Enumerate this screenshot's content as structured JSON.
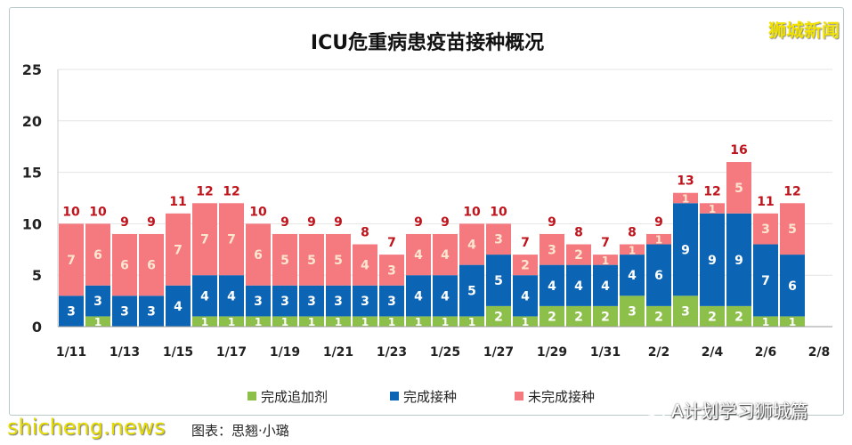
{
  "chart_data": {
    "type": "bar",
    "stacked": true,
    "title": "ICU危重病患疫苗接种概况",
    "xlabel": "",
    "ylabel": "",
    "ylim": [
      0,
      25
    ],
    "yticks": [
      "0",
      "5",
      "10",
      "15",
      "20",
      "25"
    ],
    "grid": true,
    "legend_position": "bottom",
    "categories": [
      "1/11",
      "1/12",
      "1/13",
      "1/14",
      "1/15",
      "1/16",
      "1/17",
      "1/18",
      "1/19",
      "1/20",
      "1/21",
      "1/22",
      "1/23",
      "1/24",
      "1/25",
      "1/26",
      "1/27",
      "1/28",
      "1/29",
      "1/30",
      "1/31",
      "2/1",
      "2/2",
      "2/3",
      "2/4",
      "2/5",
      "2/6",
      "2/7"
    ],
    "xtick_labels": [
      "1/11",
      "1/13",
      "1/15",
      "1/17",
      "1/19",
      "1/21",
      "1/23",
      "1/25",
      "1/27",
      "1/29",
      "1/31",
      "2/2",
      "2/4",
      "2/6",
      "2/8"
    ],
    "series": [
      {
        "name": "完成追加剂",
        "color": "#8cc04a",
        "values": [
          0,
          1,
          0,
          0,
          0,
          1,
          1,
          1,
          1,
          1,
          1,
          1,
          1,
          1,
          1,
          1,
          2,
          1,
          2,
          2,
          2,
          3,
          2,
          3,
          2,
          2,
          1,
          1
        ]
      },
      {
        "name": "完成接种",
        "color": "#0c64b4",
        "values": [
          3,
          3,
          3,
          3,
          4,
          4,
          4,
          3,
          3,
          3,
          3,
          3,
          3,
          4,
          4,
          5,
          5,
          4,
          4,
          4,
          4,
          4,
          6,
          9,
          9,
          9,
          7,
          6
        ]
      },
      {
        "name": "未完成接种",
        "color": "#f47a80",
        "values": [
          7,
          6,
          6,
          6,
          7,
          7,
          7,
          6,
          5,
          5,
          5,
          4,
          3,
          4,
          4,
          4,
          3,
          2,
          3,
          2,
          1,
          1,
          1,
          1,
          1,
          5,
          3,
          5
        ]
      }
    ],
    "totals": [
      10,
      10,
      9,
      9,
      11,
      12,
      12,
      10,
      9,
      9,
      9,
      8,
      7,
      9,
      9,
      10,
      10,
      7,
      9,
      8,
      7,
      8,
      9,
      13,
      12,
      16,
      11,
      12
    ]
  },
  "watermarks": {
    "brand": "狮城新闻",
    "site": "shicheng.news",
    "wechat": "A计划学习狮城篇"
  },
  "caption": "图表：思翘·小璐",
  "colors": {
    "total_label": "#c0141c"
  }
}
